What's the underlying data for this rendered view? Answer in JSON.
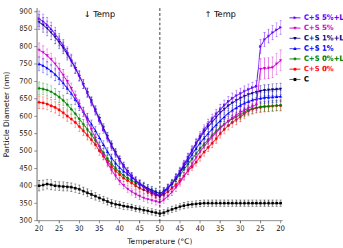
{
  "chart_data": {
    "type": "line",
    "xlabel": "Temperature (°C)",
    "ylabel": "Particle Diameter (nm)",
    "annotations": [
      "↓ Temp",
      "↑ Temp"
    ],
    "categories": [
      "20",
      null,
      null,
      null,
      null,
      "25",
      null,
      null,
      null,
      null,
      "30",
      null,
      null,
      null,
      null,
      "35",
      null,
      null,
      null,
      null,
      "40",
      null,
      null,
      null,
      null,
      "45",
      null,
      null,
      null,
      null,
      "50",
      null,
      null,
      null,
      null,
      "45",
      null,
      null,
      null,
      null,
      "40",
      null,
      null,
      null,
      null,
      "35",
      null,
      null,
      null,
      null,
      "30",
      null,
      null,
      null,
      null,
      "25",
      null,
      null,
      null,
      null,
      "20"
    ],
    "ylim": [
      300,
      910
    ],
    "yticks": [
      300,
      350,
      400,
      450,
      500,
      550,
      600,
      650,
      700,
      750,
      800,
      850,
      900
    ],
    "grid": false,
    "legend": "right",
    "series": [
      {
        "name": "C",
        "color": "#000000",
        "marker": "square",
        "values": [
          400,
          402,
          405,
          403,
          400,
          399,
          398,
          397,
          396,
          393,
          390,
          385,
          380,
          375,
          370,
          365,
          360,
          355,
          350,
          347,
          345,
          342,
          340,
          338,
          335,
          333,
          330,
          328,
          325,
          323,
          320,
          323,
          328,
          332,
          336,
          340,
          343,
          345,
          347,
          348,
          349,
          350,
          350,
          350,
          350,
          350,
          350,
          350,
          350,
          350,
          350,
          350,
          350,
          350,
          350,
          350,
          350,
          350,
          350,
          350,
          350
        ],
        "errors": [
          15,
          14,
          14,
          14,
          13,
          13,
          13,
          12,
          12,
          12,
          12,
          11,
          11,
          11,
          11,
          10,
          10,
          10,
          10,
          10,
          10,
          10,
          9,
          9,
          9,
          9,
          9,
          9,
          9,
          9,
          9,
          9,
          9,
          9,
          9,
          9,
          9,
          9,
          9,
          9,
          9,
          9,
          9,
          9,
          9,
          9,
          9,
          9,
          9,
          9,
          9,
          9,
          9,
          9,
          9,
          9,
          9,
          9,
          9,
          9,
          9
        ]
      },
      {
        "name": "C+S 0%",
        "color": "#ff0000",
        "marker": "circle",
        "values": [
          640,
          638,
          635,
          630,
          625,
          618,
          610,
          600,
          592,
          582,
          570,
          558,
          545,
          532,
          518,
          500,
          485,
          470,
          455,
          443,
          432,
          422,
          415,
          408,
          400,
          393,
          388,
          383,
          378,
          373,
          370,
          375,
          383,
          393,
          403,
          415,
          428,
          443,
          455,
          468,
          483,
          497,
          510,
          522,
          535,
          550,
          562,
          573,
          582,
          590,
          598,
          607,
          615,
          620,
          623,
          625,
          627,
          628,
          629,
          630,
          630
        ],
        "errors": [
          18,
          17,
          17,
          17,
          16,
          16,
          15,
          15,
          14,
          14,
          14,
          13,
          13,
          12,
          12,
          12,
          11,
          11,
          11,
          10,
          10,
          10,
          10,
          10,
          10,
          10,
          10,
          10,
          10,
          10,
          10,
          10,
          10,
          10,
          10,
          11,
          11,
          11,
          11,
          11,
          12,
          12,
          12,
          13,
          13,
          13,
          13,
          13,
          14,
          14,
          14,
          14,
          14,
          14,
          14,
          15,
          15,
          15,
          15,
          15,
          15
        ]
      },
      {
        "name": "C+S 0%+L",
        "color": "#008000",
        "marker": "diamond",
        "values": [
          680,
          678,
          675,
          670,
          663,
          655,
          645,
          633,
          620,
          607,
          592,
          577,
          562,
          547,
          530,
          513,
          495,
          478,
          463,
          450,
          440,
          430,
          422,
          415,
          408,
          403,
          398,
          393,
          388,
          383,
          378,
          385,
          393,
          405,
          418,
          432,
          447,
          462,
          477,
          492,
          507,
          520,
          532,
          545,
          557,
          568,
          577,
          585,
          592,
          598,
          605,
          612,
          618,
          622,
          625,
          627,
          628,
          629,
          630,
          631,
          632
        ],
        "errors": [
          18,
          17,
          17,
          17,
          16,
          16,
          15,
          15,
          14,
          14,
          14,
          13,
          13,
          13,
          12,
          12,
          12,
          11,
          11,
          11,
          11,
          10,
          10,
          10,
          10,
          10,
          10,
          10,
          10,
          10,
          10,
          10,
          10,
          10,
          11,
          11,
          11,
          11,
          11,
          12,
          12,
          12,
          13,
          13,
          13,
          14,
          14,
          14,
          14,
          14,
          14,
          14,
          14,
          14,
          14,
          14,
          14,
          15,
          15,
          15,
          15
        ]
      },
      {
        "name": "C+S 1%",
        "color": "#0000ff",
        "marker": "triangle-up",
        "values": [
          750,
          745,
          738,
          730,
          720,
          708,
          695,
          680,
          665,
          648,
          630,
          613,
          595,
          577,
          558,
          538,
          518,
          498,
          480,
          465,
          452,
          442,
          433,
          424,
          415,
          407,
          400,
          393,
          387,
          382,
          377,
          385,
          395,
          408,
          422,
          438,
          455,
          472,
          490,
          507,
          523,
          537,
          550,
          563,
          575,
          587,
          598,
          608,
          617,
          624,
          631,
          637,
          642,
          646,
          649,
          651,
          653,
          654,
          655,
          656,
          657
        ],
        "errors": [
          20,
          20,
          19,
          18,
          18,
          17,
          16,
          15,
          15,
          14,
          14,
          13,
          13,
          12,
          12,
          12,
          11,
          11,
          11,
          11,
          11,
          10,
          10,
          10,
          10,
          10,
          10,
          10,
          10,
          10,
          10,
          10,
          10,
          10,
          11,
          11,
          11,
          12,
          12,
          12,
          13,
          13,
          14,
          14,
          14,
          14,
          14,
          14,
          15,
          15,
          15,
          15,
          15,
          15,
          16,
          16,
          16,
          16,
          16,
          16,
          16
        ]
      },
      {
        "name": "C+S 1%+L",
        "color": "#000080",
        "marker": "triangle-down",
        "values": [
          870,
          862,
          852,
          840,
          827,
          812,
          796,
          778,
          758,
          737,
          715,
          692,
          668,
          644,
          618,
          593,
          567,
          542,
          518,
          496,
          476,
          458,
          442,
          428,
          415,
          405,
          396,
          388,
          382,
          376,
          371,
          380,
          392,
          406,
          422,
          440,
          460,
          480,
          500,
          520,
          538,
          555,
          570,
          583,
          597,
          610,
          620,
          630,
          638,
          645,
          652,
          657,
          662,
          666,
          669,
          672,
          674,
          675,
          676,
          677,
          678
        ],
        "errors": [
          22,
          21,
          21,
          20,
          19,
          18,
          17,
          17,
          16,
          15,
          14,
          13,
          13,
          12,
          12,
          12,
          11,
          11,
          11,
          11,
          11,
          10,
          10,
          10,
          10,
          10,
          10,
          10,
          10,
          10,
          10,
          10,
          10,
          10,
          11,
          11,
          11,
          12,
          12,
          13,
          13,
          14,
          14,
          14,
          14,
          15,
          15,
          15,
          15,
          15,
          16,
          16,
          16,
          16,
          16,
          16,
          16,
          16,
          17,
          17,
          17
        ]
      },
      {
        "name": "C+S 5%",
        "color": "#cc00cc",
        "marker": "triangle-down",
        "values": [
          790,
          783,
          774,
          763,
          750,
          735,
          718,
          700,
          680,
          658,
          635,
          612,
          587,
          562,
          537,
          512,
          487,
          465,
          445,
          428,
          413,
          401,
          391,
          383,
          376,
          370,
          365,
          361,
          358,
          355,
          352,
          360,
          370,
          382,
          395,
          410,
          427,
          445,
          463,
          481,
          498,
          513,
          527,
          540,
          553,
          565,
          576,
          586,
          595,
          603,
          611,
          617,
          623,
          628,
          632,
          735,
          737,
          738,
          740,
          750,
          760
        ],
        "errors": [
          20,
          19,
          19,
          18,
          17,
          17,
          16,
          15,
          15,
          14,
          13,
          13,
          12,
          12,
          12,
          11,
          11,
          11,
          11,
          10,
          10,
          10,
          10,
          10,
          10,
          10,
          10,
          10,
          10,
          10,
          10,
          10,
          10,
          10,
          11,
          11,
          11,
          12,
          12,
          12,
          13,
          13,
          14,
          14,
          14,
          15,
          15,
          15,
          15,
          15,
          15,
          15,
          15,
          15,
          16,
          30,
          30,
          30,
          30,
          30,
          30
        ]
      },
      {
        "name": "C+S 5%+L",
        "color": "#6600ff",
        "marker": "triangle-right",
        "values": [
          880,
          872,
          862,
          850,
          836,
          820,
          803,
          783,
          762,
          740,
          717,
          692,
          667,
          641,
          615,
          588,
          562,
          537,
          513,
          492,
          473,
          456,
          441,
          428,
          416,
          406,
          397,
          389,
          383,
          377,
          372,
          382,
          394,
          408,
          424,
          442,
          462,
          482,
          503,
          523,
          543,
          561,
          577,
          592,
          606,
          619,
          631,
          642,
          651,
          659,
          665,
          672,
          677,
          682,
          686,
          800,
          820,
          830,
          840,
          848,
          855
        ],
        "errors": [
          22,
          21,
          21,
          20,
          19,
          18,
          17,
          16,
          16,
          15,
          14,
          13,
          13,
          12,
          12,
          11,
          11,
          11,
          11,
          11,
          11,
          10,
          10,
          10,
          10,
          10,
          10,
          10,
          10,
          10,
          10,
          10,
          10,
          10,
          11,
          11,
          11,
          12,
          12,
          13,
          13,
          14,
          14,
          14,
          14,
          15,
          15,
          15,
          15,
          15,
          15,
          15,
          15,
          15,
          16,
          20,
          20,
          20,
          20,
          20,
          20
        ]
      }
    ]
  }
}
